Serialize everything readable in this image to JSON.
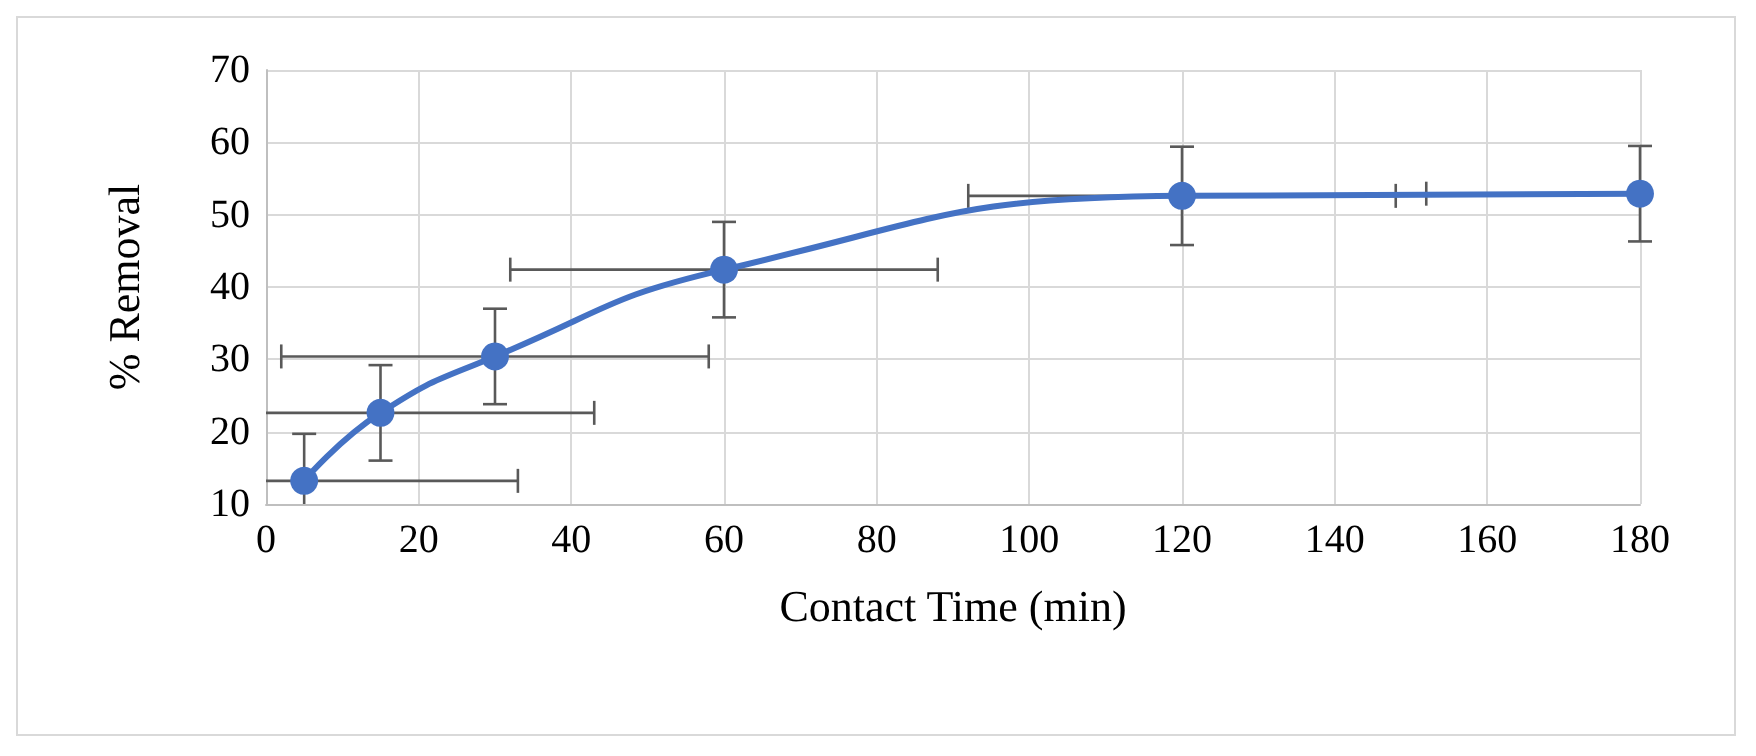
{
  "chart_data": {
    "type": "line",
    "xlabel": "Contact Time (min)",
    "ylabel": "% Removal",
    "x": [
      5,
      15,
      30,
      60,
      120,
      180
    ],
    "series": [
      {
        "color": "#4472c4",
        "values": [
          13.2,
          22.6,
          30.4,
          42.4,
          52.6,
          52.9
        ],
        "errors": [
          [
            10,
            19.7
          ],
          6.6,
          6.6,
          6.6,
          6.8,
          6.6
        ],
        "xerrors": [
          [
            0,
            33
          ],
          [
            0,
            43
          ],
          28,
          28,
          28,
          [
            152,
            180
          ]
        ]
      }
    ],
    "xlim": [
      0,
      180
    ],
    "xticks": [
      0,
      20,
      40,
      60,
      80,
      100,
      120,
      140,
      160,
      180
    ],
    "ylim": [
      10,
      70
    ],
    "yticks": [
      10,
      20,
      30,
      40,
      50,
      60,
      70
    ],
    "grid": true,
    "marker": "circle",
    "line_style": "solid"
  }
}
